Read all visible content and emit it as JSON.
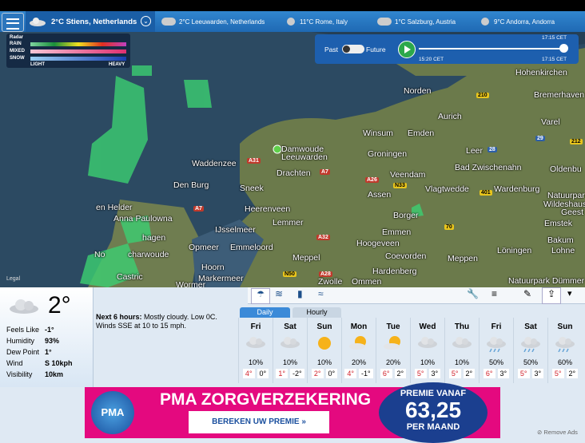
{
  "header": {
    "location": "2°C Stiens, Netherlands",
    "others": [
      "2°C Leeuwarden, Netherlands",
      "11°C Rome, Italy",
      "1°C Salzburg, Austria",
      "9°C Andorra, Andorra"
    ]
  },
  "legend": {
    "title": "Radar",
    "rows": [
      "RAIN",
      "MIXED",
      "SNOW"
    ],
    "light": "LIGHT",
    "heavy": "HEAVY"
  },
  "timeline": {
    "past": "Past",
    "future": "Future",
    "end_top": "17:15 CET",
    "start": "15:20 CET",
    "end": "17:15 CET"
  },
  "map": {
    "labels": [
      "Hohenkirchen",
      "Norden",
      "Bremerhaven",
      "Aurich",
      "Varel",
      "Winsum",
      "Emden",
      "Damwoude",
      "Leeuwarden",
      "Groningen",
      "Leer",
      "Waddenzee",
      "Drachten",
      "Bad Zwischenahn",
      "Oldenbu",
      "Den Burg",
      "Sneek",
      "Veendam",
      "Vlagtwedde",
      "Wardenburg",
      "Assen",
      "Natuurpar",
      "Wildeshaus",
      "Geest",
      "Heerenveen",
      "en Helder",
      "Anna Paulowna",
      "Borger",
      "IJsselmeer",
      "Lemmer",
      "Emmen",
      "Emstek",
      "Bakum",
      "hagen",
      "Opmeer",
      "Emmeloord",
      "Hoogeveen",
      "Löningen",
      "Lohne",
      "No",
      "charwoude",
      "Coevorden",
      "Meppen",
      "Meppel",
      "Hoorn",
      "Hardenberg",
      "Castric",
      "Markermeer",
      "Zwolle",
      "Ommen",
      "Wormer",
      "Natuurpark Dümmer"
    ],
    "roads": [
      "A31",
      "A7",
      "A26",
      "N33",
      "A7",
      "A32",
      "N50",
      "A28",
      "210",
      "29",
      "212",
      "28",
      "401",
      "70"
    ],
    "legal": "Legal"
  },
  "current": {
    "temp": "2°",
    "rows": [
      [
        "Feels Like",
        "-1°"
      ],
      [
        "Humidity",
        "93%"
      ],
      [
        "Dew Point",
        "1°"
      ],
      [
        "Wind",
        "S 10kph"
      ],
      [
        "Visibility",
        "10km"
      ]
    ]
  },
  "summary": {
    "lead": "Next 6 hours:",
    "text": "Mostly cloudy. Low 0C. Winds SSE at 10 to 15 mph."
  },
  "tabs": [
    "Daily",
    "Hourly"
  ],
  "days": [
    {
      "day": "Fri",
      "pop": "10%",
      "hi": "4°",
      "lo": "0°"
    },
    {
      "day": "Sat",
      "pop": "10%",
      "hi": "1°",
      "lo": "-2°"
    },
    {
      "day": "Sun",
      "pop": "10%",
      "hi": "2°",
      "lo": "0°"
    },
    {
      "day": "Mon",
      "pop": "20%",
      "hi": "4°",
      "lo": "-1°"
    },
    {
      "day": "Tue",
      "pop": "20%",
      "hi": "6°",
      "lo": "2°"
    },
    {
      "day": "Wed",
      "pop": "10%",
      "hi": "5°",
      "lo": "3°"
    },
    {
      "day": "Thu",
      "pop": "10%",
      "hi": "5°",
      "lo": "2°"
    },
    {
      "day": "Fri",
      "pop": "50%",
      "hi": "6°",
      "lo": "3°"
    },
    {
      "day": "Sat",
      "pop": "50%",
      "hi": "5°",
      "lo": "3°"
    },
    {
      "day": "Sun",
      "pop": "60%",
      "hi": "5°",
      "lo": "2°"
    }
  ],
  "ad": {
    "logo": "PMA",
    "headline": "PMA ZORGVERZEKERING",
    "button": "BEREKEN UW PREMIE »",
    "premium_label": "PREMIE VANAF",
    "price": "63,25",
    "per": "PER MAAND",
    "remove": "Remove Ads"
  }
}
